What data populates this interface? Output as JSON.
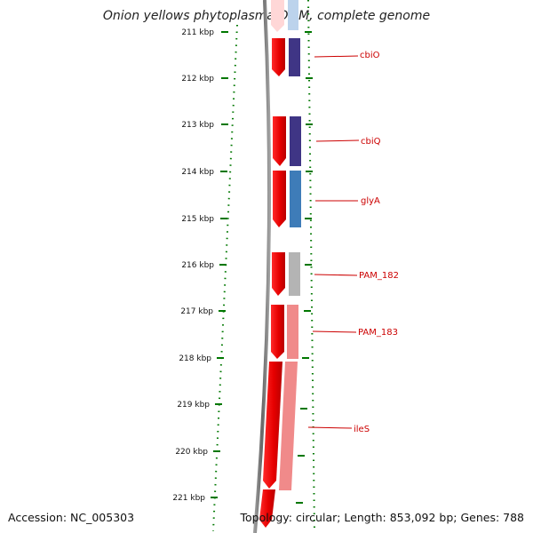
{
  "title": "Onion yellows phytoplasma OY-M, complete genome",
  "accession": "Accession: NC_005303",
  "topology": "Topology: circular; Length: 853,092 bp; Genes: 788",
  "kbp_ticks": [
    "211 kbp",
    "212 kbp",
    "213 kbp",
    "214 kbp",
    "215 kbp",
    "216 kbp",
    "217 kbp",
    "218 kbp",
    "219 kbp",
    "220 kbp",
    "221 kbp"
  ],
  "genes": [
    {
      "name": "cbiO",
      "cog_color": "#3f3585"
    },
    {
      "name": "cbiQ",
      "cog_color": "#3f3585"
    },
    {
      "name": "glyA",
      "cog_color": "#3e7cb8"
    },
    {
      "name": "PAM_182",
      "cog_color": "#b4b4b4"
    },
    {
      "name": "PAM_183",
      "cog_color": "#f08a8a"
    },
    {
      "name": "ileS",
      "cog_color": "#f08a8a"
    }
  ],
  "colors": {
    "cds_strand": "#ee0000",
    "backbone": "#808080",
    "ticks": "#007700",
    "label": "#cc0000"
  }
}
